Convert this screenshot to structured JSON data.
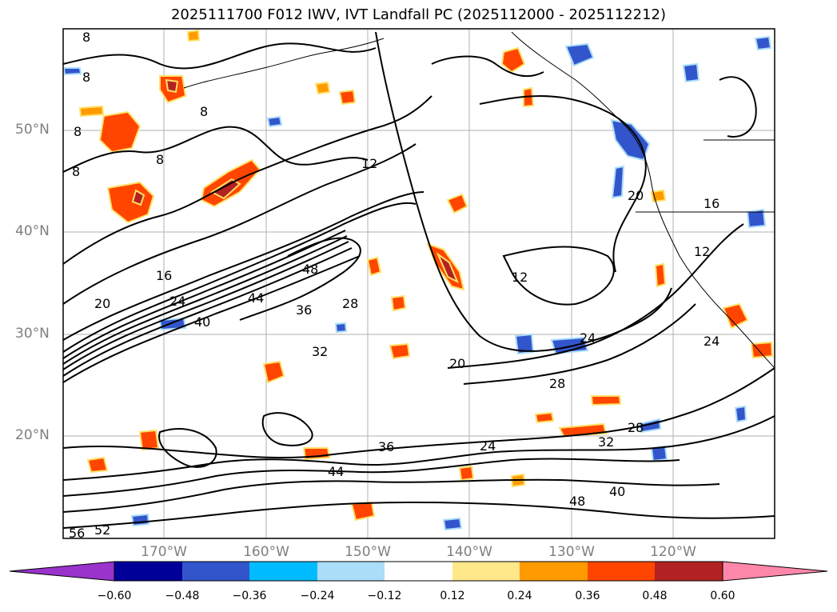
{
  "title": "2025111700 F012 IWV, IVT Landfall PC (2025112000 - 2025112212)",
  "map": {
    "lat_ticks": [
      "50°N",
      "40°N",
      "30°N",
      "20°N"
    ],
    "lon_ticks": [
      "170°W",
      "160°W",
      "150°W",
      "140°W",
      "130°W",
      "120°W"
    ],
    "contour_labels": [
      "8",
      "8",
      "8",
      "8",
      "8",
      "8",
      "12",
      "16",
      "20",
      "24",
      "28",
      "32",
      "36",
      "40",
      "44",
      "48",
      "52",
      "56",
      "12",
      "20",
      "24",
      "28",
      "32",
      "36",
      "40",
      "44",
      "48",
      "24",
      "28",
      "16",
      "12",
      "20",
      "24"
    ]
  },
  "colorbar": {
    "ticks": [
      "−0.60",
      "−0.48",
      "−0.36",
      "−0.24",
      "−0.12",
      "0.12",
      "0.24",
      "0.36",
      "0.48",
      "0.60"
    ],
    "colors": [
      "#9933cc",
      "#000099",
      "#3355cc",
      "#00bbff",
      "#aaddf8",
      "#ffffff",
      "#ffe88a",
      "#ff9a00",
      "#ff4500",
      "#b22222",
      "#ff88aa"
    ]
  }
}
